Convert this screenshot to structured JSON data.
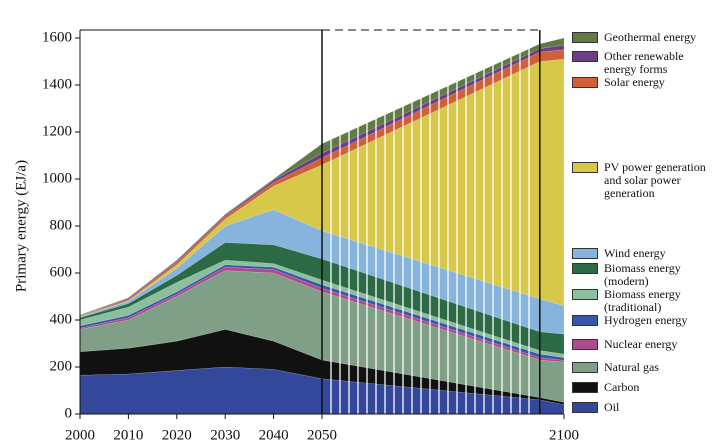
{
  "chart_data": {
    "type": "stacked_area",
    "y_label": "Primary energy (EJ/a)",
    "x": [
      2000,
      2010,
      2020,
      2030,
      2040,
      2050,
      2095,
      2100
    ],
    "xlim": [
      2000,
      2100
    ],
    "xticks": [
      2000,
      2010,
      2020,
      2030,
      2040,
      2050,
      2100
    ],
    "ylim": [
      0,
      1600
    ],
    "yticks": [
      0,
      200,
      400,
      600,
      800,
      1000,
      1200,
      1400,
      1600
    ],
    "series": [
      {
        "name": "Oil",
        "color": "#33489a",
        "values": [
          165,
          170,
          185,
          200,
          190,
          150,
          60,
          40
        ]
      },
      {
        "name": "Carbon",
        "color": "#111111",
        "values": [
          100,
          110,
          125,
          160,
          120,
          80,
          10,
          10
        ]
      },
      {
        "name": "Natural gas",
        "color": "#7f9f86",
        "values": [
          95,
          120,
          190,
          250,
          290,
          290,
          160,
          170
        ]
      },
      {
        "name": "Nuclear energy",
        "color": "#b04a8a",
        "values": [
          5,
          10,
          10,
          15,
          15,
          15,
          10,
          8
        ]
      },
      {
        "name": "Hydrogen energy",
        "color": "#3957a8",
        "values": [
          10,
          10,
          10,
          10,
          10,
          15,
          15,
          12
        ]
      },
      {
        "name": "Biomass energy (traditional)",
        "color": "#8cc09c",
        "values": [
          25,
          35,
          40,
          20,
          15,
          20,
          15,
          15
        ]
      },
      {
        "name": "Biomass energy (modern)",
        "color": "#2b6a45",
        "values": [
          10,
          15,
          30,
          75,
          80,
          90,
          80,
          85
        ]
      },
      {
        "name": "Wind energy",
        "color": "#86b4dc",
        "values": [
          5,
          10,
          30,
          70,
          150,
          120,
          140,
          120
        ]
      },
      {
        "name": "PV power generation and solar power generation",
        "color": "#d8c84a",
        "values": [
          0,
          2,
          15,
          30,
          100,
          280,
          1010,
          1050
        ]
      },
      {
        "name": "Solar energy",
        "color": "#d0603a",
        "values": [
          3,
          6,
          10,
          10,
          15,
          30,
          40,
          40
        ]
      },
      {
        "name": "Other renewable energy forms",
        "color": "#6a3f86",
        "values": [
          2,
          4,
          5,
          5,
          10,
          20,
          15,
          20
        ]
      },
      {
        "name": "Geothermal energy",
        "color": "#5f7a45",
        "values": [
          2,
          3,
          5,
          5,
          5,
          40,
          20,
          30
        ]
      }
    ]
  }
}
